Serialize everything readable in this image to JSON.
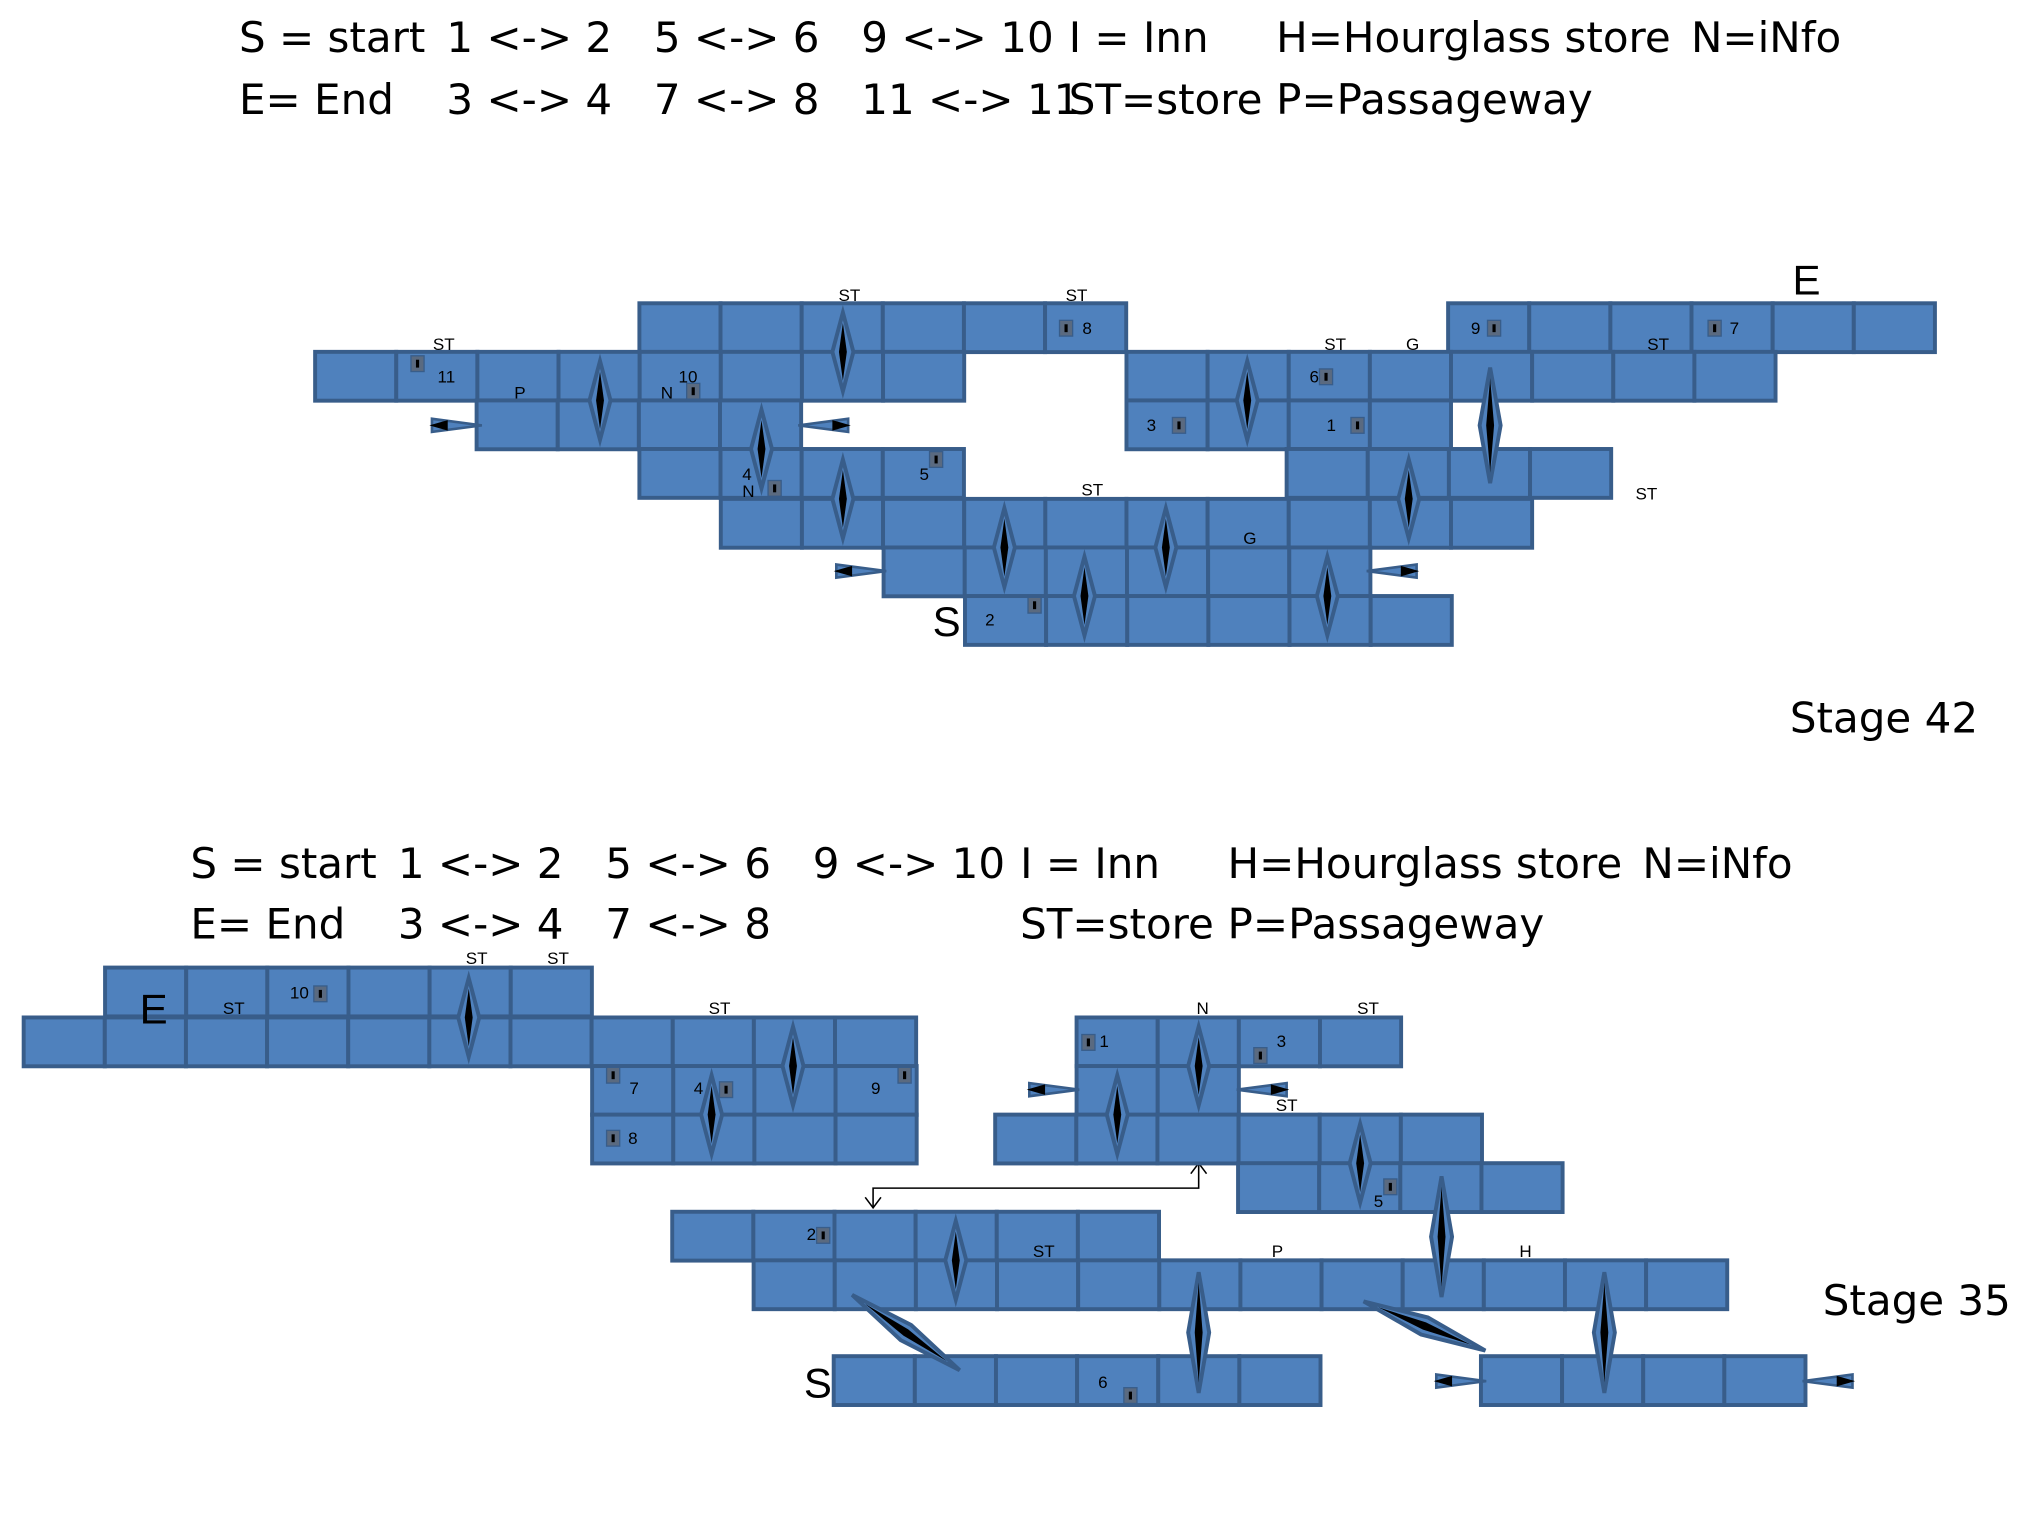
{
  "stages": [
    {
      "title": "Stage 42",
      "legend": [
        [
          "S = start",
          "1 <-> 2",
          "5 <-> 6",
          "9 <-> 10",
          "I = Inn",
          "H=Hourglass store",
          "N=iNfo"
        ],
        [
          "E= End",
          "3 <-> 4",
          "7 <-> 8",
          "11 <-> 11",
          "ST=store",
          "P=Passageway"
        ]
      ],
      "labels": [
        "ST",
        "11",
        "P",
        "10",
        "N",
        "ST",
        "ST",
        "8",
        "4",
        "N",
        "5",
        "3",
        "1",
        "6",
        "ST",
        "G",
        "9",
        "7",
        "ST",
        "ST",
        "ST",
        "G",
        "2",
        "S",
        "E"
      ]
    },
    {
      "title": "Stage 35",
      "legend": [
        [
          "S = start",
          "1 <-> 2",
          "5 <-> 6",
          "9 <-> 10",
          "I = Inn",
          "H=Hourglass store",
          "N=iNfo"
        ],
        [
          "E= End",
          "3 <-> 4",
          "7 <-> 8",
          "ST=store",
          "P=Passageway"
        ]
      ],
      "labels": [
        "ST",
        "ST",
        "10",
        "ST",
        "E",
        "ST",
        "7",
        "4",
        "9",
        "8",
        "N",
        "ST",
        "1",
        "3",
        "ST",
        "5",
        "2",
        "ST",
        "P",
        "H",
        "6",
        "S"
      ]
    }
  ]
}
